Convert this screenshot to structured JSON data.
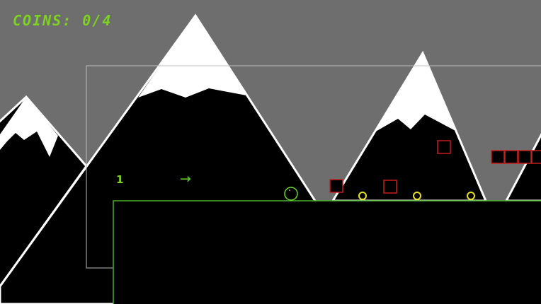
{
  "hud": {
    "coins_label": "COINS: 0/4",
    "coins_collected": 0,
    "coins_total": 4
  },
  "level": {
    "number": "1",
    "hint_arrow": "→"
  },
  "colors": {
    "sky": "#6e6e6e",
    "mountain": "#000000",
    "snow": "#ffffff",
    "accent": "#7ed321",
    "hazard": "#c81e1e",
    "coin": "#e8e020",
    "platform_outline": "#4caf2a"
  },
  "entities": {
    "player": "ball",
    "coins_visible": 3,
    "hazards_visible": 7
  }
}
